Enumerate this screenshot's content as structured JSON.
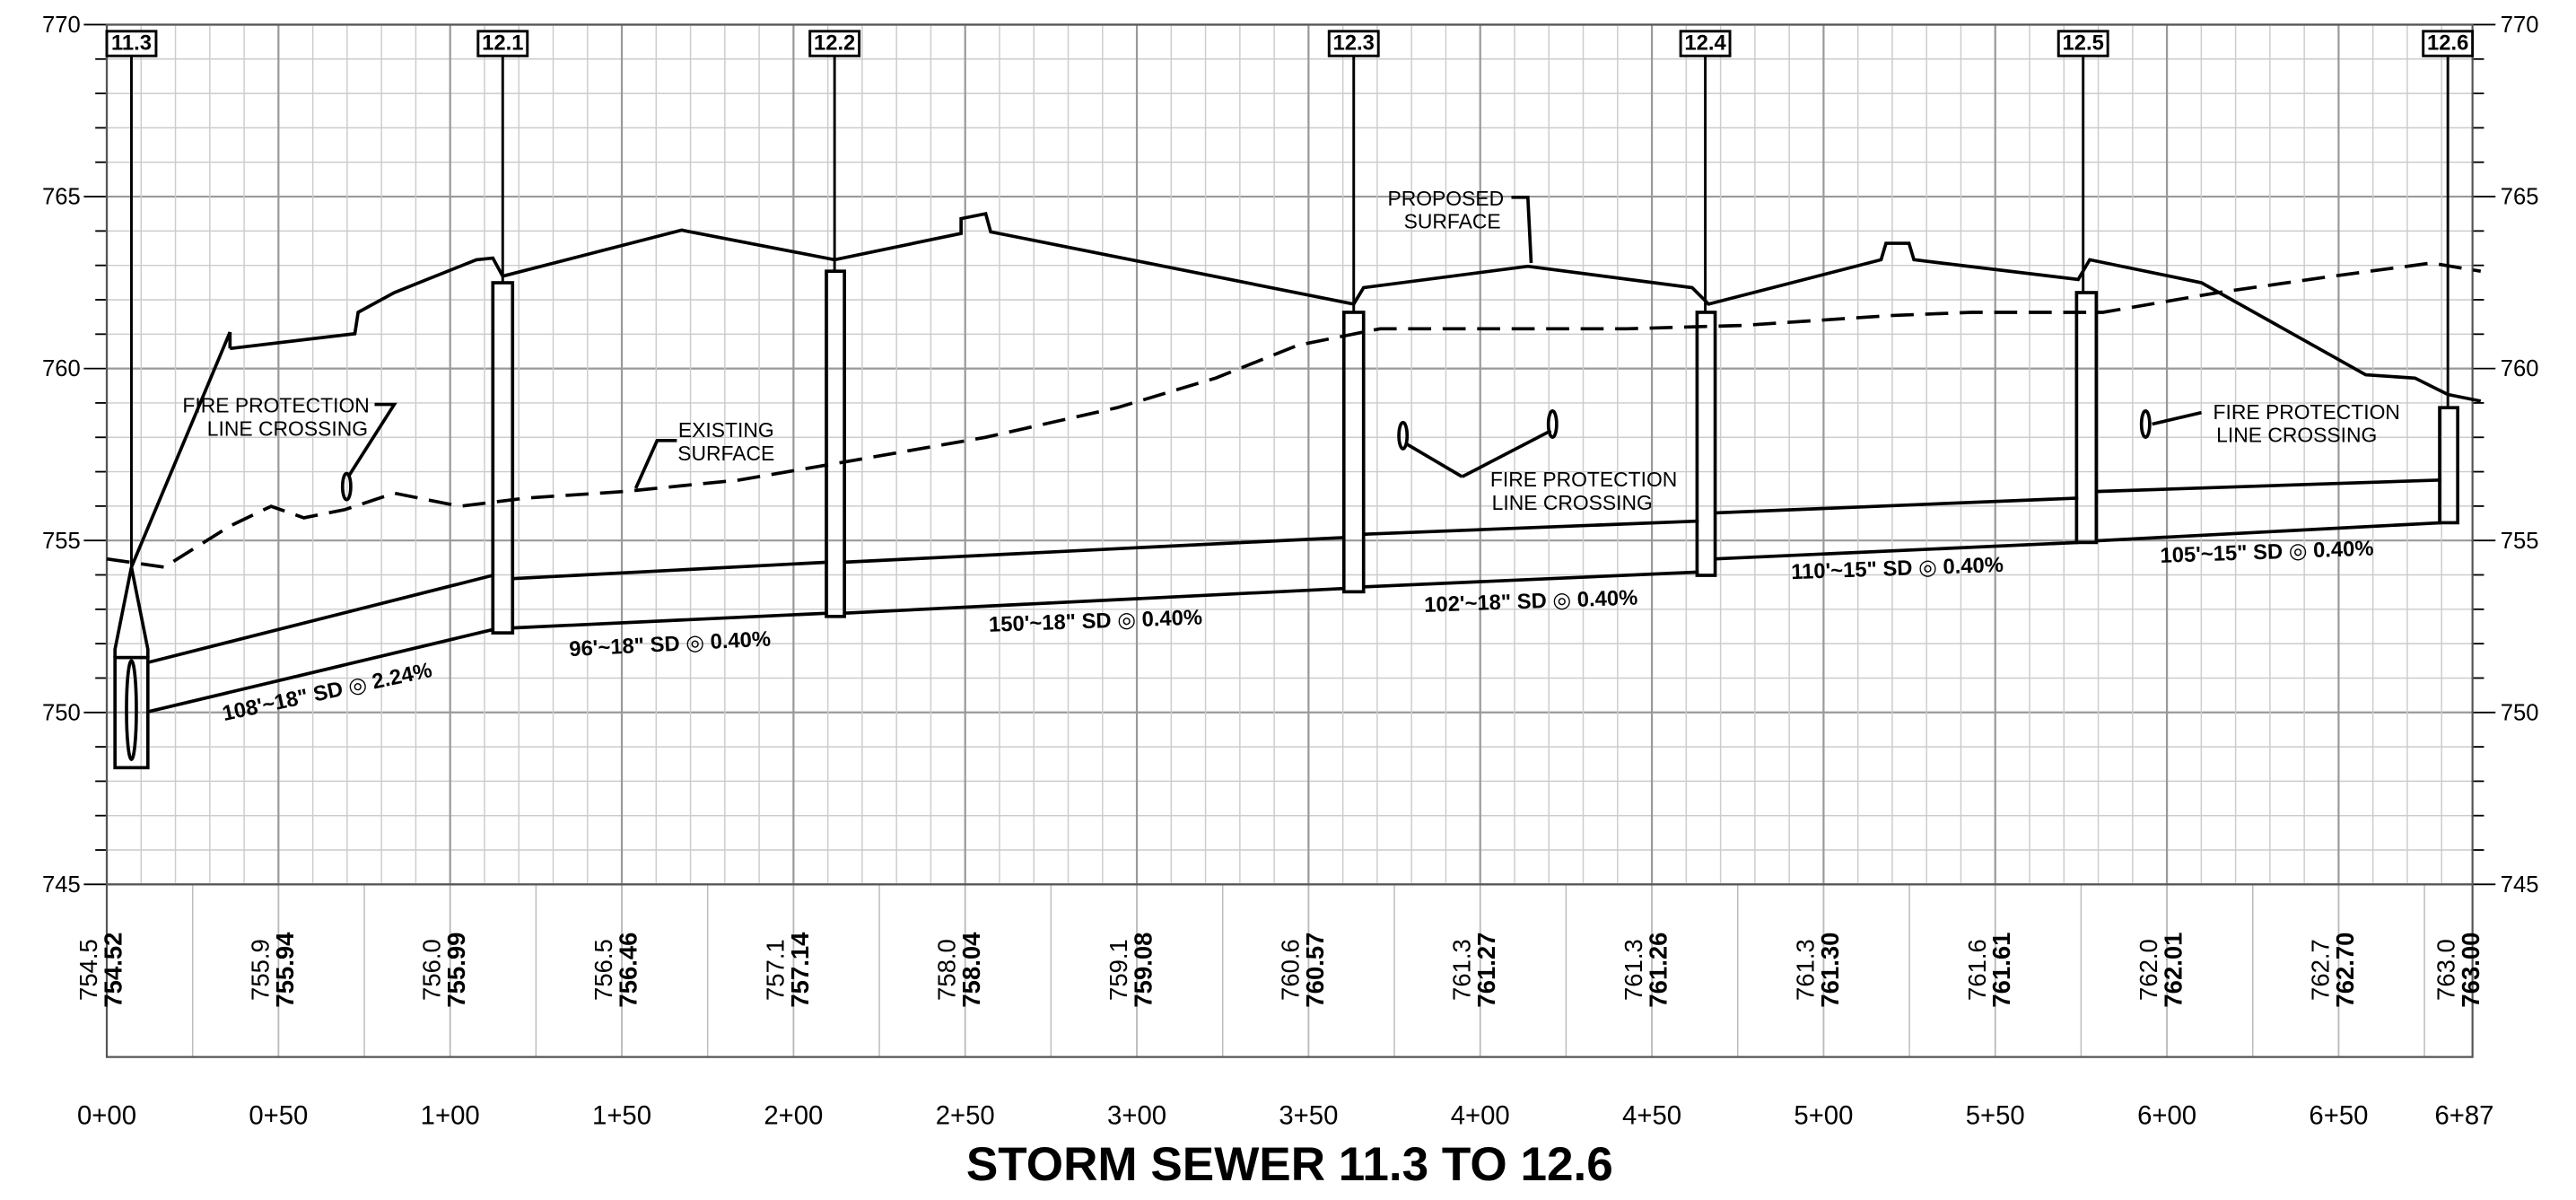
{
  "title": "STORM SEWER 11.3 TO 12.6",
  "elevation_axis": {
    "left": [
      "770",
      "765",
      "760",
      "755",
      "750",
      "745"
    ],
    "right": [
      "770",
      "765",
      "760",
      "755",
      "750",
      "745"
    ]
  },
  "structures": [
    "11.3",
    "12.1",
    "12.2",
    "12.3",
    "12.4",
    "12.5",
    "12.6"
  ],
  "pipes": [
    "108'~18\" SD ◎ 2.24%",
    "96'~18\" SD ◎ 0.40%",
    "150'~18\" SD ◎ 0.40%",
    "102'~18\" SD ◎ 0.40%",
    "110'~15\" SD ◎ 0.40%",
    "105'~15\" SD ◎ 0.40%"
  ],
  "annotations": [
    {
      "lines": [
        "FIRE PROTECTION",
        "LINE CROSSING"
      ]
    },
    {
      "lines": [
        "EXISTING",
        "SURFACE"
      ]
    },
    {
      "lines": [
        "PROPOSED",
        "SURFACE"
      ]
    },
    {
      "lines": [
        "FIRE PROTECTION",
        "LINE CROSSING"
      ]
    },
    {
      "lines": [
        "FIRE PROTECTION",
        "LINE CROSSING"
      ]
    }
  ],
  "stations": [
    "0+00",
    "0+50",
    "1+00",
    "1+50",
    "2+00",
    "2+50",
    "3+00",
    "3+50",
    "4+00",
    "4+50",
    "5+00",
    "5+50",
    "6+00",
    "6+50",
    "6+87"
  ],
  "elevations": {
    "existing": [
      "754.5",
      "755.9",
      "756.0",
      "756.5",
      "757.1",
      "758.0",
      "759.1",
      "760.6",
      "761.3",
      "761.3",
      "761.3",
      "761.6",
      "762.0",
      "762.7",
      "763.0"
    ],
    "proposed": [
      "754.52",
      "755.94",
      "755.99",
      "756.46",
      "757.14",
      "758.04",
      "759.08",
      "760.57",
      "761.27",
      "761.26",
      "761.30",
      "761.61",
      "762.01",
      "762.70",
      "763.00"
    ]
  }
}
